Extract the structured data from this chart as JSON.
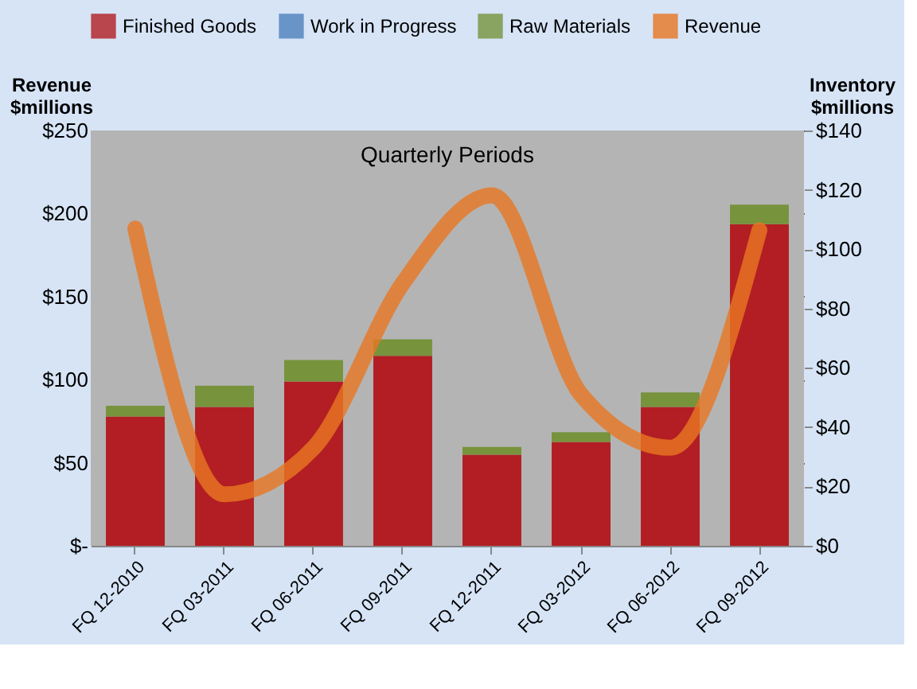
{
  "chart_data": {
    "type": "bar",
    "title": "Quarterly Periods",
    "ylabel": "Revenue $millions",
    "y2label": "Inventory $millions",
    "categories": [
      "FQ 12-2010",
      "FQ 03-2011",
      "FQ 06-2011",
      "FQ 09-2011",
      "FQ 12-2011",
      "FQ 03-2012",
      "FQ 06-2012",
      "FQ 09-2012"
    ],
    "stacked": true,
    "series": [
      {
        "name": "Finished Goods",
        "color": "#b21e23",
        "axis": "y2",
        "values": [
          43.6,
          46.8,
          55.4,
          64.0,
          30.7,
          35.0,
          46.8,
          108.4
        ]
      },
      {
        "name": "Work in Progress",
        "color": "#4f81bd",
        "axis": "y2",
        "values": [
          0,
          0,
          0,
          0,
          0,
          0,
          0,
          0
        ]
      },
      {
        "name": "Raw Materials",
        "color": "#77933c",
        "axis": "y2",
        "values": [
          3.6,
          7.2,
          7.2,
          5.6,
          2.6,
          3.3,
          4.9,
          6.6
        ]
      },
      {
        "name": "Revenue",
        "type": "line",
        "color": "#e87722",
        "axis": "y",
        "values": [
          191,
          31,
          59,
          158,
          211,
          91,
          59,
          190
        ]
      }
    ],
    "ylim": [
      0,
      250
    ],
    "yticks": [
      {
        "value": 0,
        "label": "$-"
      },
      {
        "value": 50,
        "label": "$50"
      },
      {
        "value": 100,
        "label": "$100"
      },
      {
        "value": 150,
        "label": "$150"
      },
      {
        "value": 200,
        "label": "$200"
      },
      {
        "value": 250,
        "label": "$250"
      }
    ],
    "y2lim": [
      0,
      140
    ],
    "y2ticks": [
      {
        "value": 0,
        "label": "$0"
      },
      {
        "value": 20,
        "label": "$20"
      },
      {
        "value": 40,
        "label": "$40"
      },
      {
        "value": 60,
        "label": "$60"
      },
      {
        "value": 80,
        "label": "$80"
      },
      {
        "value": 100,
        "label": "$100"
      },
      {
        "value": 120,
        "label": "$120"
      },
      {
        "value": 140,
        "label": "$140"
      }
    ],
    "grid": "y",
    "legend": "top"
  }
}
